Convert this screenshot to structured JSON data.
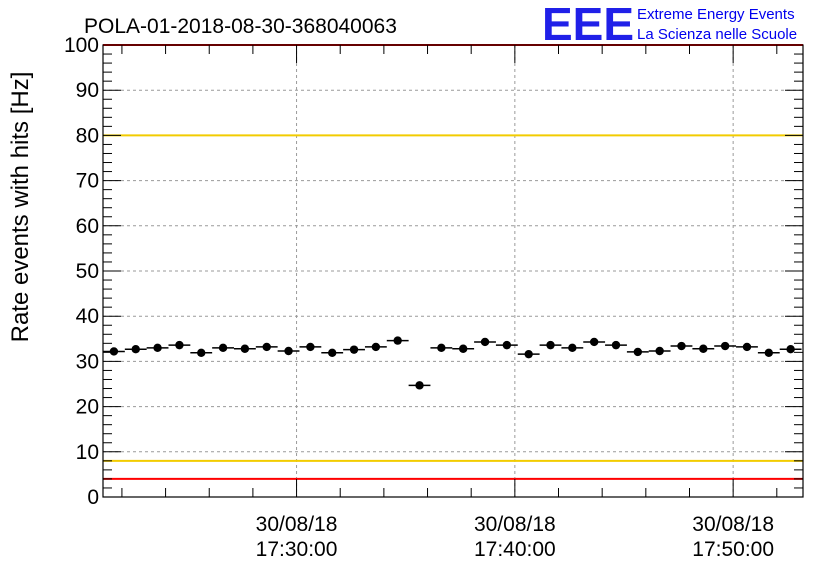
{
  "chart_data": {
    "type": "scatter",
    "title": "POLA-01-2018-08-30-368040063",
    "ylabel": "Rate events with hits [Hz]",
    "xlabel": "",
    "ylim": [
      0,
      100
    ],
    "yticks": [
      0,
      10,
      20,
      30,
      40,
      50,
      60,
      70,
      80,
      90,
      100
    ],
    "xlim": [
      "30/08/18 17:21:08",
      "30/08/18 17:53:12"
    ],
    "xticks": [
      {
        "date": "30/08/18",
        "time": "17:30:00"
      },
      {
        "date": "30/08/18",
        "time": "17:40:00"
      },
      {
        "date": "30/08/18",
        "time": "17:50:00"
      }
    ],
    "grid": true,
    "bin_width_seconds": 60,
    "series": [
      {
        "x": [
          "17:21:38",
          "17:22:38",
          "17:23:38",
          "17:24:38",
          "17:25:38",
          "17:26:38",
          "17:27:38",
          "17:28:38",
          "17:29:38",
          "17:30:38",
          "17:31:38",
          "17:32:38",
          "17:33:38",
          "17:34:38",
          "17:35:38",
          "17:36:38",
          "17:37:38",
          "17:38:38",
          "17:39:38",
          "17:40:38",
          "17:41:38",
          "17:42:38",
          "17:43:38",
          "17:44:38",
          "17:45:38",
          "17:46:38",
          "17:47:38",
          "17:48:38",
          "17:49:38",
          "17:50:38",
          "17:51:38",
          "17:52:38"
        ],
        "y": [
          32.2,
          32.7,
          33.0,
          33.6,
          31.9,
          33.0,
          32.8,
          33.2,
          32.3,
          33.2,
          31.9,
          32.6,
          33.2,
          34.6,
          24.7,
          33.0,
          32.8,
          34.3,
          33.6,
          31.6,
          33.6,
          33.0,
          34.3,
          33.6,
          32.1,
          32.3,
          33.4,
          32.8,
          33.4,
          33.2,
          31.9,
          32.7
        ]
      }
    ],
    "reference_lines": [
      {
        "y": 100,
        "color": "#ff0000"
      },
      {
        "y": 80,
        "color": "#f2cc00"
      },
      {
        "y": 8,
        "color": "#f2cc00"
      },
      {
        "y": 4,
        "color": "#ff0000"
      }
    ]
  },
  "logo": {
    "mark": "EEE",
    "line1": "Extreme Energy Events",
    "line2": "La Scienza nelle Scuole",
    "color": "#0000ee"
  }
}
